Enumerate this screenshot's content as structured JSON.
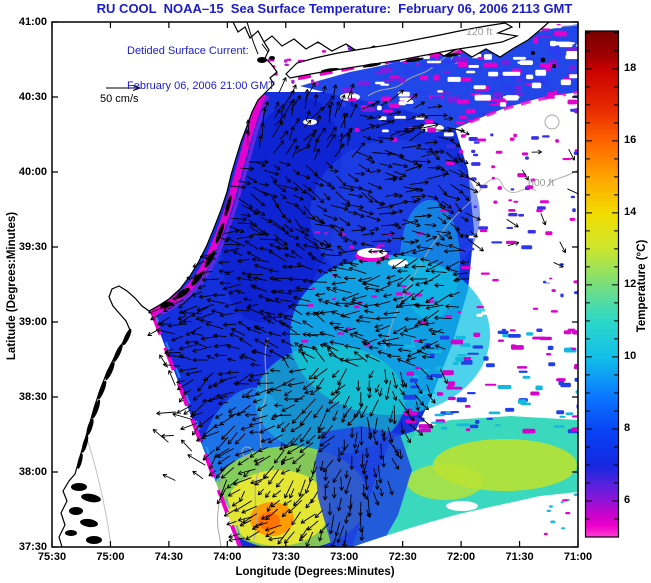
{
  "figure": {
    "title": "RU COOL  NOAA–15  Sea Surface Temperature:  February 06, 2006 2113 GMT"
  },
  "annotation": {
    "line1": "Detided Surface Current:",
    "line2": "February 06, 2006 21:00 GMT"
  },
  "scale_arrow": {
    "label": "50 cm/s"
  },
  "axes": {
    "x": {
      "label": "Longitude (Degrees:Minutes)",
      "ticks": [
        "75:30",
        "75:00",
        "74:30",
        "74:00",
        "73:30",
        "73:00",
        "72:30",
        "72:00",
        "71:30",
        "71:00"
      ]
    },
    "y": {
      "label": "Latitude (Degrees:Minutes)",
      "ticks": [
        "41:00",
        "40:30",
        "40:00",
        "39:30",
        "39:00",
        "38:30",
        "38:00",
        "37:30"
      ]
    }
  },
  "colorbar": {
    "label": "Temperature (°C)",
    "tick_values": [
      6,
      8,
      10,
      12,
      14,
      16,
      18
    ],
    "value_min": 5,
    "value_max": 19.05
  },
  "map_labels": {
    "contour_shallow": "120 ft",
    "contour_deep": "600 ft"
  },
  "colors": {
    "title_blue": "#1c1ccc",
    "shelf_blue": "#1430dd",
    "royal_blue": "#2147e8",
    "dark_blue": "#0b1ecc",
    "band_blue": "#1e46e0",
    "cyan": "#10c4e4",
    "teal": "#17d2c4",
    "cyan_green": "#2fd6b8",
    "light_cyan": "#22aaee",
    "green": "#8fd84a",
    "yellow_green": "#b9e332",
    "yellow": "#e8e832",
    "orange": "#ff9c00",
    "deep_orange": "#ff7200",
    "magenta": "#ee00cc",
    "purple": "#6a2ae0",
    "contour_gray": "#a8a8a8",
    "label_gray": "#9a9a9a"
  },
  "chart_data": {
    "type": "heatmap",
    "title": "RU COOL  NOAA–15  Sea Surface Temperature:  February 06, 2006 2113 GMT",
    "xlabel": "Longitude (Degrees:Minutes)",
    "ylabel": "Latitude (Degrees:Minutes)",
    "x_ticks": [
      "75:30",
      "75:00",
      "74:30",
      "74:00",
      "73:30",
      "73:00",
      "72:30",
      "72:00",
      "71:30",
      "71:00"
    ],
    "y_ticks": [
      "41:00",
      "40:30",
      "40:00",
      "39:30",
      "39:00",
      "38:30",
      "38:00",
      "37:30"
    ],
    "x_range_deg_west": [
      75.5,
      71.0
    ],
    "y_range_deg_north": [
      37.5,
      41.0
    ],
    "grid": false,
    "colorbar": {
      "label": "Temperature (°C)",
      "ticks_c": [
        6,
        8,
        10,
        12,
        14,
        16,
        18
      ],
      "range_c": [
        5,
        19
      ]
    },
    "overlays": [
      {
        "name": "detided surface current vectors",
        "timestamp_label": "February 06, 2006 21:00 GMT",
        "reference_vector": "50 cm/s",
        "style": "black arrows"
      },
      {
        "name": "bathymetry contours",
        "levels_ft": [
          120,
          600
        ],
        "style": "gray lines"
      },
      {
        "name": "coastline (NJ / Long Island / Delmarva)",
        "style": "black line, white land"
      }
    ],
    "regions": [
      {
        "name": "cold nearshore band along New Jersey coast (magenta/purple)",
        "approx_temp_c": 5.5
      },
      {
        "name": "inner and mid shelf (deep blue)",
        "approx_temp_c": 8
      },
      {
        "name": "outer shelf band (cyan)",
        "approx_temp_c": 10.5
      },
      {
        "name": "southern shelf band (green / yellow-green)",
        "approx_temp_c": 12
      },
      {
        "name": "warm core near 73:40W 37:50N (yellow-orange)",
        "approx_temp_c": 15.5
      },
      {
        "name": "northeast quadrant cloud-contaminated speckle (magenta/blue on white)",
        "approx_temp_c": null
      },
      {
        "name": "no-data wedge southwest of satellite swath edge",
        "approx_temp_c": null
      }
    ]
  }
}
